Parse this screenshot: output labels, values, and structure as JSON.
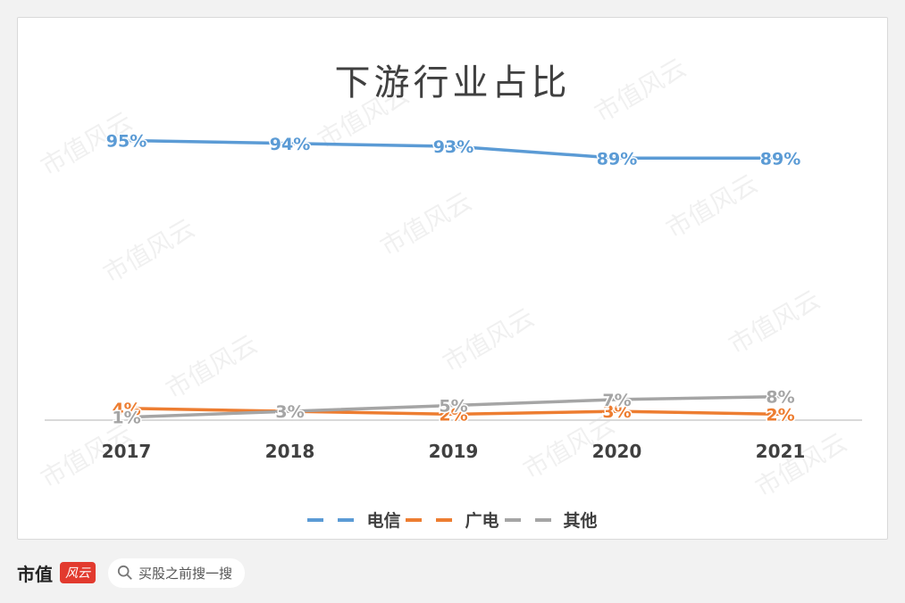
{
  "chart_data": {
    "type": "line",
    "title": "下游行业占比",
    "categories": [
      "2017",
      "2018",
      "2019",
      "2020",
      "2021"
    ],
    "series": [
      {
        "name": "电信",
        "color": "#5b9bd5",
        "values": [
          95,
          94,
          93,
          89,
          89
        ],
        "labels": [
          "95%",
          "94%",
          "93%",
          "89%",
          "89%"
        ]
      },
      {
        "name": "广电",
        "color": "#ed7d31",
        "values": [
          4,
          3,
          2,
          3,
          2
        ],
        "labels": [
          "4%",
          "3%",
          "2%",
          "3%",
          "2%"
        ]
      },
      {
        "name": "其他",
        "color": "#a5a5a5",
        "values": [
          1,
          3,
          5,
          7,
          8
        ],
        "labels": [
          "1%",
          "3%",
          "5%",
          "7%",
          "8%"
        ]
      }
    ],
    "ylim": [
      0,
      100
    ],
    "grid": false,
    "legend_position": "bottom"
  },
  "footer": {
    "brand": "市值",
    "brand_badge": "风云",
    "search_placeholder": "买股之前搜一搜"
  },
  "watermark_text": "市值风云"
}
